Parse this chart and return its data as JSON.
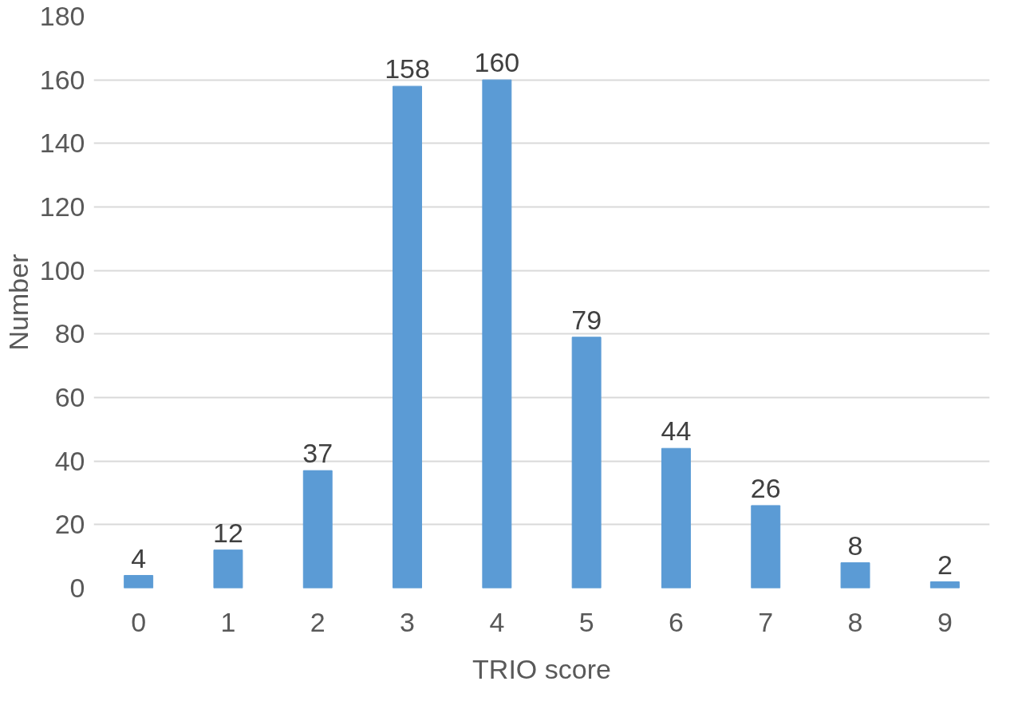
{
  "chart_data": {
    "type": "bar",
    "xlabel": "TRIO score",
    "ylabel": "Number",
    "categories": [
      "0",
      "1",
      "2",
      "3",
      "4",
      "5",
      "6",
      "7",
      "8",
      "9"
    ],
    "values": [
      4,
      12,
      37,
      158,
      160,
      79,
      44,
      26,
      8,
      2
    ],
    "color": "#5b9bd5",
    "ylim": [
      0,
      180
    ],
    "yticks": [
      0,
      20,
      40,
      60,
      80,
      100,
      120,
      140,
      160,
      180
    ],
    "grid": "y",
    "data_labels": true
  }
}
